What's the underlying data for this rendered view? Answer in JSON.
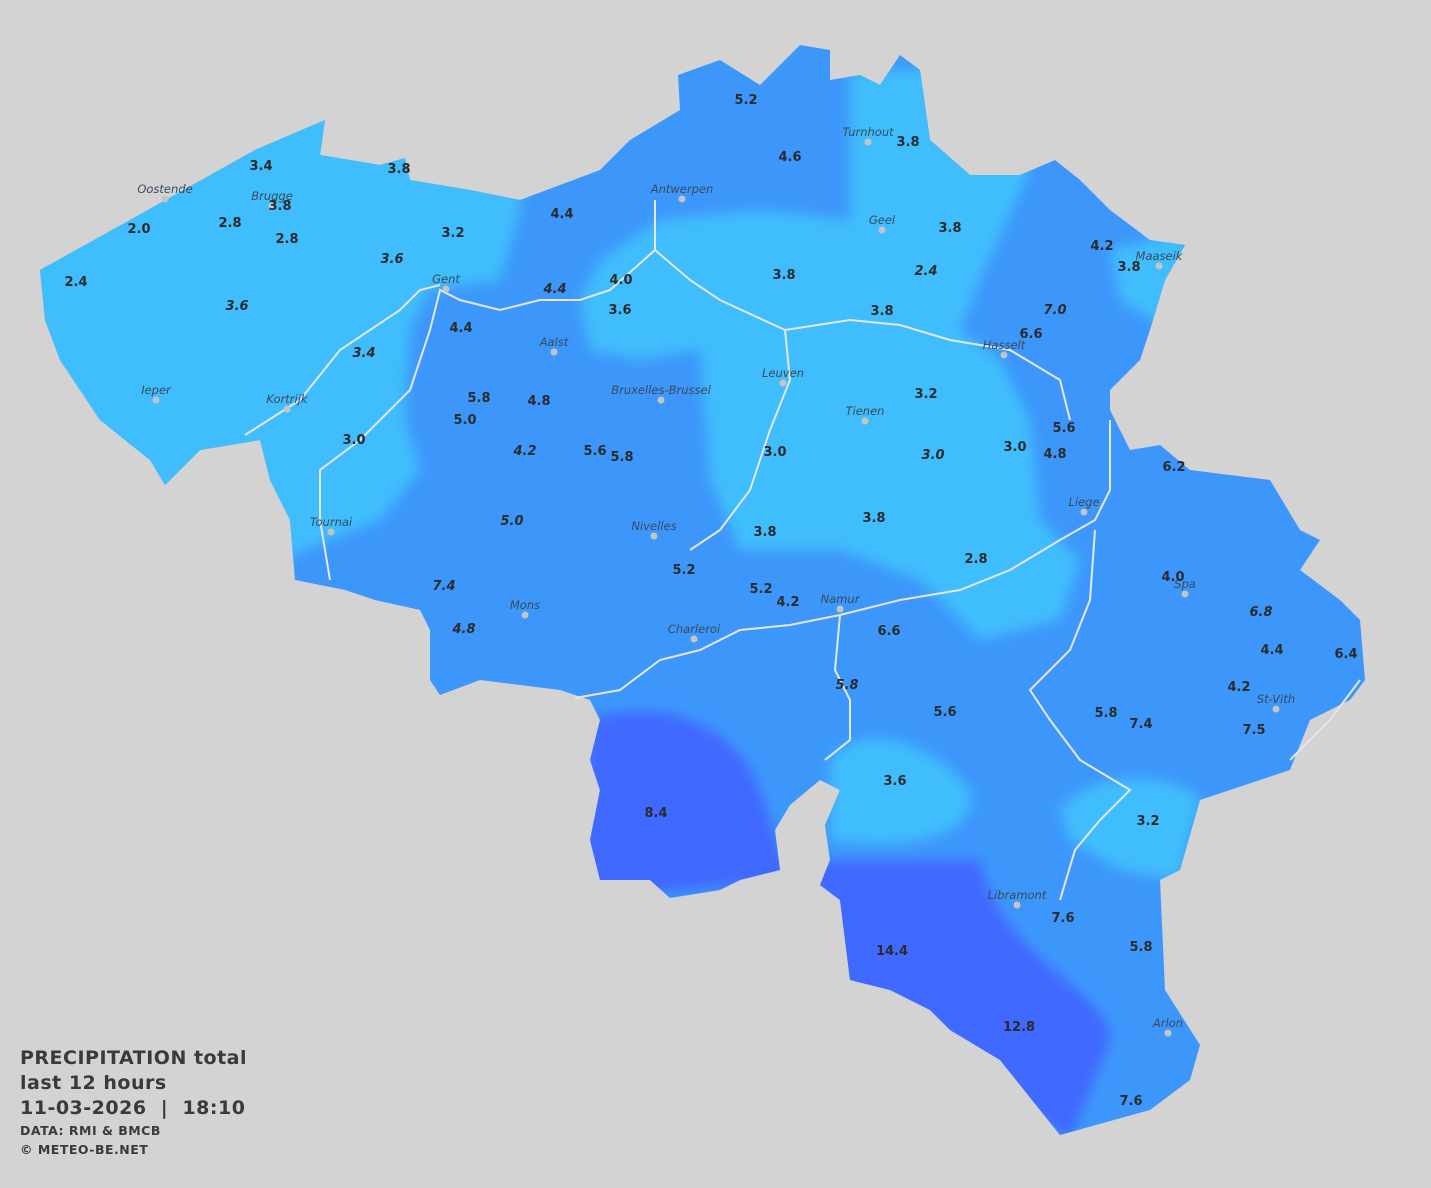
{
  "legend": {
    "title": "PRECIPITATION total",
    "period": "last 12 hours",
    "datetime": "11-03-2026  |  18:10",
    "source": "DATA: RMI & BMCB",
    "copyright": "© METEO-BE.NET"
  },
  "colors": {
    "background": "#d3d3d3",
    "light_precip": "#40bdfc",
    "medium_precip": "#3d97fb",
    "heavy_precip": "#4169ff",
    "rivers": "#e6e6e6",
    "labels": "#2b2b2b"
  },
  "units": "mm",
  "cities": [
    "Oostende",
    "Brugge",
    "Antwerpen",
    "Turnhout",
    "Geel",
    "Maaseik",
    "Gent",
    "Hasselt",
    "Aalst",
    "Leuven",
    "Ieper",
    "Kortrijk",
    "Bruxelles-Brussel",
    "Tienen",
    "Liege",
    "Tournai",
    "Nivelles",
    "Spa",
    "Mons",
    "Namur",
    "Charleroi",
    "St-Vith",
    "Libramont",
    "Arlon"
  ],
  "stations": [
    {
      "value": "5.2",
      "italic": false
    },
    {
      "value": "4.6",
      "italic": false
    },
    {
      "value": "3.8",
      "italic": false
    },
    {
      "value": "3.4",
      "italic": false
    },
    {
      "value": "3.8",
      "italic": false
    },
    {
      "value": "3.8",
      "italic": false
    },
    {
      "value": "2.0",
      "italic": false
    },
    {
      "value": "2.8",
      "italic": false
    },
    {
      "value": "2.8",
      "italic": false
    },
    {
      "value": "3.2",
      "italic": false
    },
    {
      "value": "4.4",
      "italic": false
    },
    {
      "value": "3.8",
      "italic": false
    },
    {
      "value": "4.2",
      "italic": false
    },
    {
      "value": "3.8",
      "italic": false
    },
    {
      "value": "3.6",
      "italic": true
    },
    {
      "value": "2.4",
      "italic": false
    },
    {
      "value": "3.6",
      "italic": true
    },
    {
      "value": "4.0",
      "italic": false
    },
    {
      "value": "3.8",
      "italic": false
    },
    {
      "value": "2.4",
      "italic": true
    },
    {
      "value": "4.4",
      "italic": true
    },
    {
      "value": "3.6",
      "italic": false
    },
    {
      "value": "3.8",
      "italic": false
    },
    {
      "value": "7.0",
      "italic": true
    },
    {
      "value": "4.4",
      "italic": false
    },
    {
      "value": "6.6",
      "italic": false
    },
    {
      "value": "3.4",
      "italic": true
    },
    {
      "value": "5.8",
      "italic": false
    },
    {
      "value": "4.8",
      "italic": false
    },
    {
      "value": "3.2",
      "italic": false
    },
    {
      "value": "5.0",
      "italic": false
    },
    {
      "value": "3.0",
      "italic": false
    },
    {
      "value": "4.2",
      "italic": true
    },
    {
      "value": "5.6",
      "italic": false
    },
    {
      "value": "5.8",
      "italic": false
    },
    {
      "value": "3.0",
      "italic": false
    },
    {
      "value": "3.0",
      "italic": true
    },
    {
      "value": "3.0",
      "italic": false
    },
    {
      "value": "5.6",
      "italic": false
    },
    {
      "value": "4.8",
      "italic": false
    },
    {
      "value": "6.2",
      "italic": false
    },
    {
      "value": "5.0",
      "italic": true
    },
    {
      "value": "3.8",
      "italic": false
    },
    {
      "value": "3.8",
      "italic": false
    },
    {
      "value": "2.8",
      "italic": false
    },
    {
      "value": "5.2",
      "italic": false
    },
    {
      "value": "7.4",
      "italic": true
    },
    {
      "value": "5.2",
      "italic": false
    },
    {
      "value": "4.2",
      "italic": false
    },
    {
      "value": "4.0",
      "italic": false
    },
    {
      "value": "6.8",
      "italic": true
    },
    {
      "value": "4.8",
      "italic": true
    },
    {
      "value": "6.6",
      "italic": false
    },
    {
      "value": "4.4",
      "italic": false
    },
    {
      "value": "6.4",
      "italic": false
    },
    {
      "value": "5.8",
      "italic": true
    },
    {
      "value": "4.2",
      "italic": false
    },
    {
      "value": "5.6",
      "italic": false
    },
    {
      "value": "5.8",
      "italic": false
    },
    {
      "value": "7.4",
      "italic": false
    },
    {
      "value": "7.5",
      "italic": false
    },
    {
      "value": "3.6",
      "italic": false
    },
    {
      "value": "8.4",
      "italic": false
    },
    {
      "value": "3.2",
      "italic": false
    },
    {
      "value": "7.6",
      "italic": false
    },
    {
      "value": "5.8",
      "italic": false
    },
    {
      "value": "14.4",
      "italic": false
    },
    {
      "value": "12.8",
      "italic": false
    },
    {
      "value": "7.6",
      "italic": false
    }
  ]
}
